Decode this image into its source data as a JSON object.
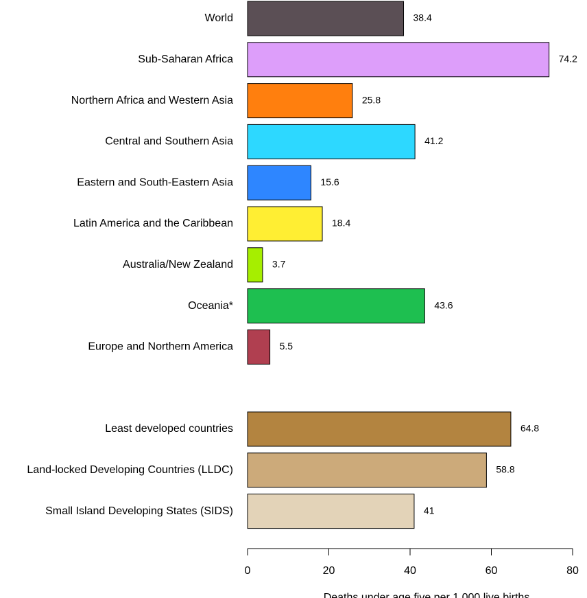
{
  "chart_data": {
    "type": "bar",
    "orientation": "horizontal",
    "x_label": "Deaths under age five per 1,000 live births",
    "categories": [
      "World",
      "Sub-Saharan Africa",
      "Northern Africa and Western Asia",
      "Central and Southern Asia",
      "Eastern and South-Eastern Asia",
      "Latin America and the Caribbean",
      "Australia/New Zealand",
      "Oceania*",
      "Europe and Northern America",
      null,
      "Least developed countries",
      "Land-locked Developing Countries (LLDC)",
      "Small Island Developing States (SIDS)"
    ],
    "values": [
      38.4,
      74.2,
      25.8,
      41.2,
      15.6,
      18.4,
      3.7,
      43.6,
      5.5,
      null,
      64.8,
      58.8,
      41
    ],
    "colors": [
      "#5b4f55",
      "#dd9efa",
      "#ff7f0e",
      "#2dd8ff",
      "#2e86ff",
      "#ffee33",
      "#a6ee00",
      "#1ebf50",
      "#b03f50",
      null,
      "#b38440",
      "#ccaa7a",
      "#e3d3b8"
    ],
    "xlim": [
      0,
      80
    ],
    "xticks": [
      0,
      20,
      40,
      60,
      80
    ]
  }
}
